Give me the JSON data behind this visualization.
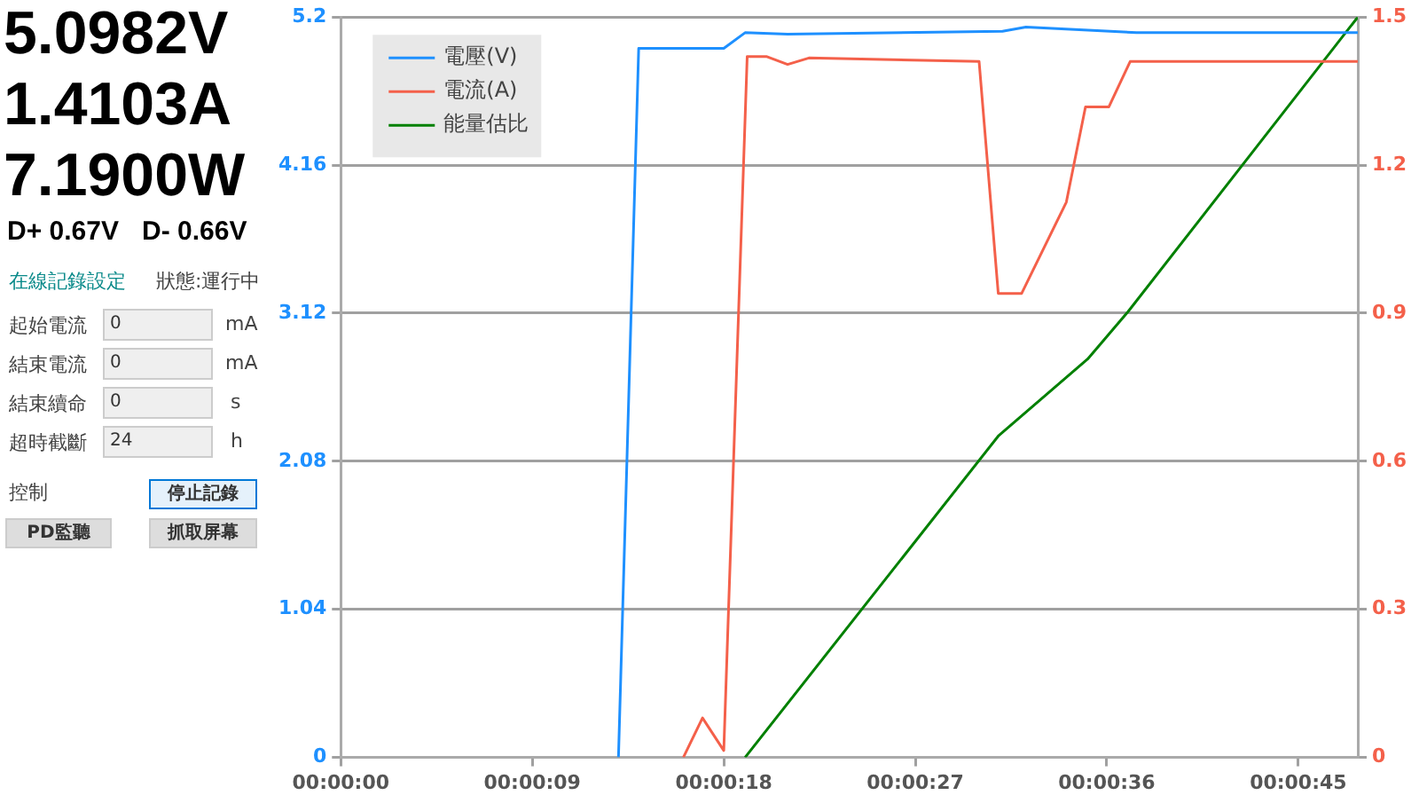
{
  "chart_data": {
    "type": "line",
    "x": [
      13.05,
      14.0,
      18.0,
      19.0,
      21.0,
      31.1,
      32.2,
      37.4,
      47.8
    ],
    "xlim": [
      0,
      47.8
    ],
    "xticks": [
      {
        "value": 0,
        "label": "00:00:00"
      },
      {
        "value": 9,
        "label": "00:00:09"
      },
      {
        "value": 18,
        "label": "00:00:18"
      },
      {
        "value": 27,
        "label": "00:00:27"
      },
      {
        "value": 36,
        "label": "00:00:36"
      },
      {
        "value": 45,
        "label": "00:00:45"
      }
    ],
    "ylim": [
      0,
      5.2
    ],
    "yticks": [
      0,
      1.04,
      2.08,
      3.12,
      4.16,
      5.2
    ],
    "y2lim": [
      0,
      1.5
    ],
    "y2ticks": [
      0,
      0.3,
      0.6,
      0.9,
      1.2,
      1.5
    ],
    "series": [
      {
        "name": "電壓(V)",
        "color": "#1e90ff",
        "values": [
          0,
          4.98,
          4.98,
          5.09,
          5.08,
          5.1,
          5.13,
          5.09,
          5.09
        ]
      },
      {
        "name": "電流(A)",
        "color": "#f4604a",
        "axis": "y2",
        "x": [
          16.1,
          17.0,
          18.0,
          19.1,
          20.0,
          21.0,
          22.0,
          30.0,
          30.9,
          32.0,
          34.1,
          35.0,
          36.1,
          37.1,
          47.8
        ],
        "values": [
          0,
          0.08,
          0.014,
          1.42,
          1.42,
          1.404,
          1.417,
          1.41,
          0.94,
          0.94,
          1.125,
          1.318,
          1.318,
          1.41,
          1.41
        ]
      },
      {
        "name": "能量估比",
        "color": "#008000",
        "axis": "y2",
        "x": [
          19.0,
          30.9,
          35.1,
          37.0,
          47.8
        ],
        "values": [
          0,
          0.651,
          0.807,
          0.903,
          1.5
        ]
      }
    ],
    "grid": "y",
    "legend": "top left",
    "marker": "none",
    "line_style": "solid",
    "annotations": [
      "5.0982V",
      "1.4103A",
      "7.1900W",
      "D+ 0.67V",
      "D- 0.66V",
      "在線記錄設定",
      "狀態:運行中",
      "起始電流",
      "0",
      "mA",
      "結束電流",
      "0",
      "mA",
      "結束續命",
      "0",
      "s",
      "超時截斷",
      "24",
      "h",
      "控制",
      "停止記錄",
      "PD監聽",
      "抓取屏幕"
    ]
  }
}
